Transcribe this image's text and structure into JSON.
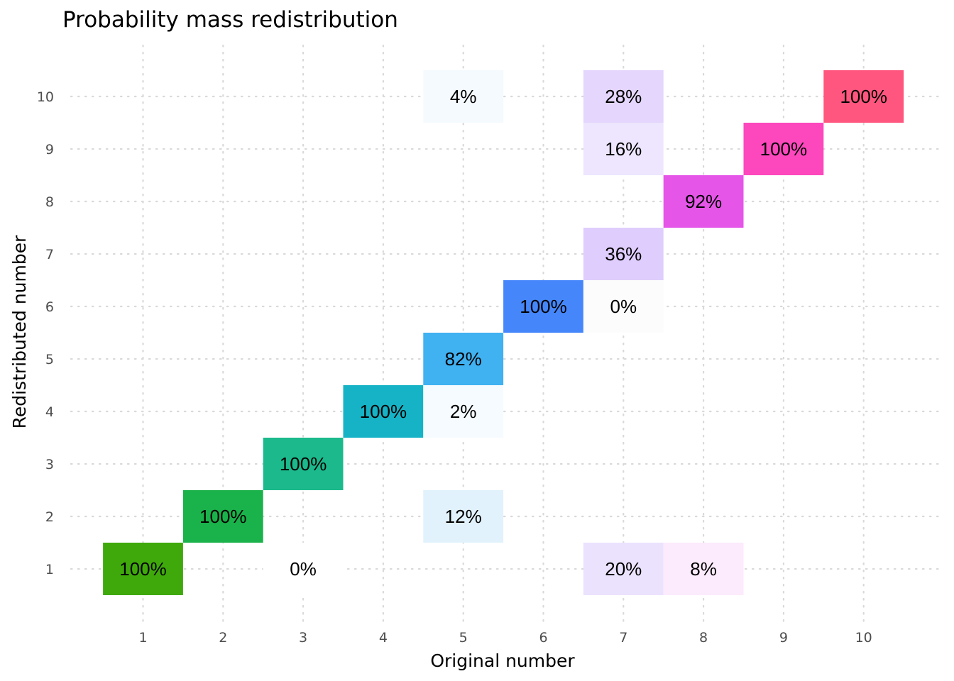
{
  "chart_data": {
    "type": "heatmap",
    "title": "Probability mass redistribution",
    "xlabel": "Original number",
    "ylabel": "Redistributed number",
    "x_ticks": [
      "1",
      "2",
      "3",
      "4",
      "5",
      "6",
      "7",
      "8",
      "9",
      "10"
    ],
    "y_ticks": [
      "1",
      "2",
      "3",
      "4",
      "5",
      "6",
      "7",
      "8",
      "9",
      "10"
    ],
    "grid": true,
    "legend": "none",
    "cells": [
      {
        "x": 1,
        "y": 1,
        "value": 100,
        "label": "100%",
        "color": "#3fa90b"
      },
      {
        "x": 2,
        "y": 2,
        "value": 100,
        "label": "100%",
        "color": "#1ab24a"
      },
      {
        "x": 3,
        "y": 1,
        "value": 0,
        "label": "0%",
        "color": "#ffffff"
      },
      {
        "x": 3,
        "y": 3,
        "value": 100,
        "label": "100%",
        "color": "#1bb98c"
      },
      {
        "x": 4,
        "y": 4,
        "value": 100,
        "label": "100%",
        "color": "#15b3c5"
      },
      {
        "x": 5,
        "y": 2,
        "value": 12,
        "label": "12%",
        "color": "#e1f2fc"
      },
      {
        "x": 5,
        "y": 4,
        "value": 2,
        "label": "2%",
        "color": "#f6fbff"
      },
      {
        "x": 5,
        "y": 5,
        "value": 82,
        "label": "82%",
        "color": "#40b1f1"
      },
      {
        "x": 5,
        "y": 10,
        "value": 4,
        "label": "4%",
        "color": "#f4fafe"
      },
      {
        "x": 6,
        "y": 6,
        "value": 100,
        "label": "100%",
        "color": "#4587fb"
      },
      {
        "x": 7,
        "y": 1,
        "value": 20,
        "label": "20%",
        "color": "#ebe2fe"
      },
      {
        "x": 7,
        "y": 6,
        "value": 0,
        "label": "0%",
        "color": "#fcfcfc"
      },
      {
        "x": 7,
        "y": 7,
        "value": 36,
        "label": "36%",
        "color": "#dfcdfd"
      },
      {
        "x": 7,
        "y": 9,
        "value": 16,
        "label": "16%",
        "color": "#ede6fe"
      },
      {
        "x": 7,
        "y": 10,
        "value": 28,
        "label": "28%",
        "color": "#e4d6fd"
      },
      {
        "x": 8,
        "y": 1,
        "value": 8,
        "label": "8%",
        "color": "#fcebfc"
      },
      {
        "x": 8,
        "y": 8,
        "value": 92,
        "label": "92%",
        "color": "#e555e8"
      },
      {
        "x": 9,
        "y": 9,
        "value": 100,
        "label": "100%",
        "color": "#fc47bd"
      },
      {
        "x": 10,
        "y": 10,
        "value": 100,
        "label": "100%",
        "color": "#fe567e"
      }
    ]
  }
}
